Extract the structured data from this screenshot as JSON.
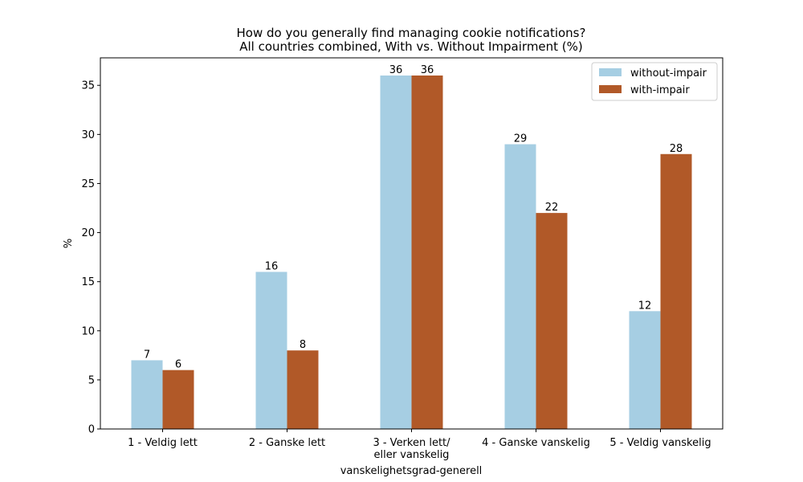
{
  "chart_data": {
    "type": "bar",
    "title_lines": [
      "How do you generally find managing cookie notifications?",
      "All countries combined, With vs. Without Impairment (%)"
    ],
    "xlabel": "vanskelighetsgrad-generell",
    "ylabel": "%",
    "categories": [
      [
        "1 - Veldig lett"
      ],
      [
        "2 - Ganske lett"
      ],
      [
        "3 - Verken lett/",
        "eller vanskelig"
      ],
      [
        "4 - Ganske vanskelig"
      ],
      [
        "5 - Veldig vanskelig"
      ]
    ],
    "series": [
      {
        "name": "without-impair",
        "color": "#a6cee3",
        "values": [
          7,
          16,
          36,
          29,
          12
        ]
      },
      {
        "name": "with-impair",
        "color": "#b15928",
        "values": [
          6,
          8,
          36,
          22,
          28
        ]
      }
    ],
    "ylim": [
      0,
      37.8
    ],
    "yticks": [
      0,
      5,
      10,
      15,
      20,
      25,
      30,
      35
    ],
    "grid": false,
    "legend_position": "top-right"
  }
}
